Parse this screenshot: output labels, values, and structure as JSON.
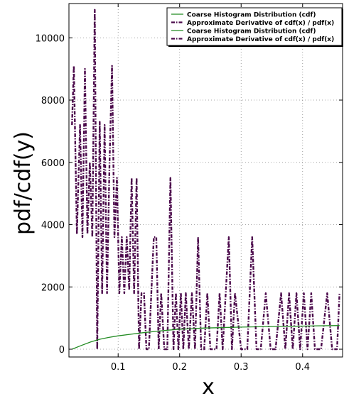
{
  "chart_data": {
    "type": "line",
    "xlabel": "x",
    "ylabel": "pdf/cdf(y)",
    "xlim": [
      0.02,
      0.465
    ],
    "ylim": [
      -250,
      11100
    ],
    "x_ticks": [
      0.1,
      0.2,
      0.3,
      0.4
    ],
    "x_tick_labels": [
      "0.1",
      "0.2",
      "0.3",
      "0.4"
    ],
    "y_ticks": [
      0,
      2000,
      4000,
      6000,
      8000,
      10000
    ],
    "y_tick_labels": [
      "0",
      "2000",
      "4000",
      "6000",
      "8000",
      "10000"
    ],
    "grid": true,
    "legend_position": "top-right",
    "series": [
      {
        "name": "Coarse Histogram Distribution (cdf)",
        "color": "#228b22",
        "style": "solid",
        "x": [
          0.025,
          0.04,
          0.055,
          0.07,
          0.085,
          0.1,
          0.12,
          0.14,
          0.16,
          0.18,
          0.2,
          0.22,
          0.24,
          0.26,
          0.28,
          0.3,
          0.33,
          0.36,
          0.39,
          0.42,
          0.46
        ],
        "y": [
          0,
          120,
          230,
          320,
          380,
          430,
          480,
          530,
          570,
          610,
          640,
          660,
          680,
          690,
          700,
          710,
          720,
          730,
          740,
          750,
          760
        ]
      },
      {
        "name": "Approximate Derivative of cdf(x) / pdf(x)",
        "color": "#4b0a4b",
        "style": "dashdot",
        "x": [
          0.025,
          0.028,
          0.033,
          0.038,
          0.042,
          0.046,
          0.05,
          0.054,
          0.058,
          0.062,
          0.066,
          0.07,
          0.074,
          0.078,
          0.082,
          0.086,
          0.09,
          0.094,
          0.098,
          0.102,
          0.106,
          0.11,
          0.114,
          0.118,
          0.122,
          0.126,
          0.13,
          0.134,
          0.138,
          0.142,
          0.146,
          0.15,
          0.154,
          0.158,
          0.162,
          0.166,
          0.17,
          0.175,
          0.18,
          0.185,
          0.19,
          0.194,
          0.198,
          0.202,
          0.206,
          0.21,
          0.215,
          0.22,
          0.225,
          0.23,
          0.235,
          0.24,
          0.245,
          0.25,
          0.255,
          0.26,
          0.265,
          0.27,
          0.275,
          0.28,
          0.285,
          0.29,
          0.3,
          0.31,
          0.318,
          0.325,
          0.332,
          0.34,
          0.348,
          0.356,
          0.365,
          0.372,
          0.378,
          0.384,
          0.39,
          0.396,
          0.402,
          0.408,
          0.414,
          0.42,
          0.43,
          0.44,
          0.448,
          0.452,
          0.456,
          0.46
        ],
        "y": [
          7200,
          9100,
          3700,
          7200,
          3600,
          9000,
          3700,
          6000,
          3600,
          10900,
          0,
          7300,
          1800,
          7200,
          1800,
          6000,
          9100,
          3600,
          5500,
          1800,
          3600,
          1800,
          3600,
          1900,
          5500,
          1800,
          5500,
          0,
          1800,
          1800,
          0,
          0,
          1800,
          3600,
          3600,
          0,
          1800,
          0,
          0,
          5500,
          0,
          1800,
          0,
          1800,
          0,
          1800,
          0,
          1800,
          0,
          3600,
          0,
          0,
          1800,
          0,
          0,
          0,
          1800,
          0,
          1800,
          3600,
          0,
          1800,
          0,
          0,
          3600,
          0,
          0,
          1800,
          0,
          0,
          1800,
          0,
          1800,
          0,
          1800,
          0,
          1800,
          0,
          1800,
          0,
          0,
          1800,
          0,
          0,
          0,
          1800
        ]
      },
      {
        "name": "Coarse Histogram Distribution (cdf)",
        "color": "#228b22",
        "style": "solid"
      },
      {
        "name": "Approximate Derivative of cdf(x) / pdf(x)",
        "color": "#4b0a4b",
        "style": "dashdot"
      }
    ]
  }
}
